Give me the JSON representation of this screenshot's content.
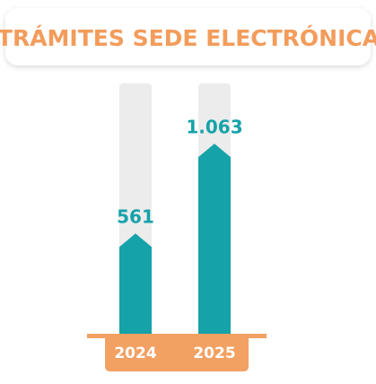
{
  "chart_data": {
    "type": "bar",
    "title": "TRÁMITES SEDE ELECTRÓNICA",
    "categories": [
      "2024",
      "2025"
    ],
    "values": [
      561,
      1063
    ],
    "value_labels": [
      "561",
      "1.063"
    ],
    "color": "#16a2a9",
    "title_color": "#f39c5b",
    "category_band_color": "#f2a163",
    "ylim": [
      0,
      1400
    ]
  }
}
